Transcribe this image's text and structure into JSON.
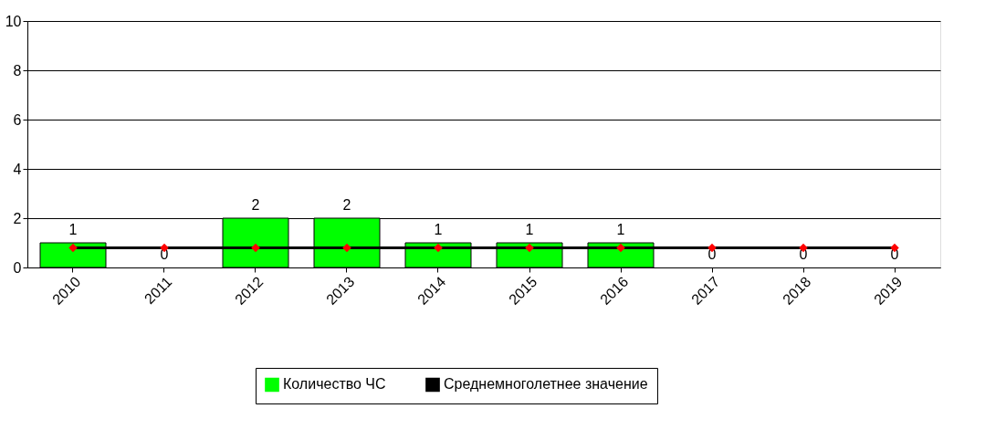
{
  "chart_data": {
    "type": "bar",
    "categories": [
      "2010",
      "2011",
      "2012",
      "2013",
      "2014",
      "2015",
      "2016",
      "2017",
      "2018",
      "2019"
    ],
    "series": [
      {
        "name": "Количество ЧС",
        "color": "#00ff00",
        "values": [
          1,
          0,
          2,
          2,
          1,
          1,
          1,
          0,
          0,
          0
        ],
        "value_labels": [
          "1",
          "0",
          "2",
          "2",
          "1",
          "1",
          "1",
          "0",
          "0",
          "0"
        ]
      },
      {
        "name": "Среднемноголетнее значение",
        "type": "line",
        "color": "#000000",
        "marker": "diamond",
        "values": [
          0.8,
          0.8,
          0.8,
          0.8,
          0.8,
          0.8,
          0.8,
          0.8,
          0.8,
          0.8
        ]
      }
    ],
    "ylim": [
      0,
      10
    ],
    "yticks": [
      0,
      2,
      4,
      6,
      8,
      10
    ],
    "grid": "y",
    "legend": "bottom"
  }
}
